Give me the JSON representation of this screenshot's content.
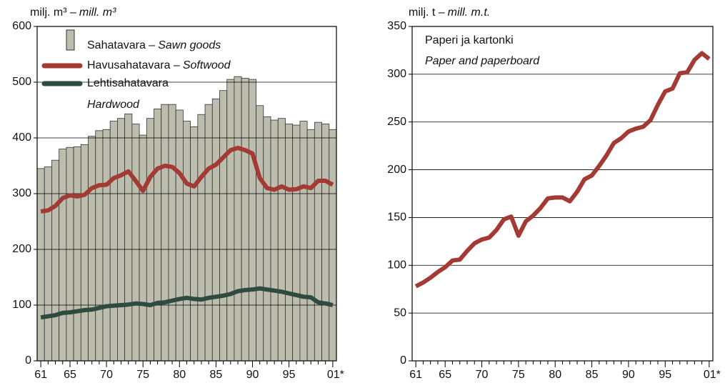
{
  "chart_data": [
    {
      "type": "bar",
      "unit_label": "milj. m³ –",
      "unit_label_en": "mill. m³",
      "categories": [
        "61",
        null,
        null,
        null,
        "65",
        null,
        null,
        null,
        null,
        "70",
        null,
        null,
        null,
        null,
        "75",
        null,
        null,
        null,
        null,
        "80",
        null,
        null,
        null,
        null,
        "85",
        null,
        null,
        null,
        null,
        "90",
        null,
        null,
        null,
        null,
        "95",
        null,
        null,
        null,
        null,
        null,
        "01*"
      ],
      "ylim": [
        0,
        600
      ],
      "yticks": [
        0,
        100,
        200,
        300,
        400,
        500,
        600
      ],
      "grid": true,
      "series": [
        {
          "name": "Sahatavara –",
          "name_en": "Sawn goods",
          "type": "bar",
          "color": "#bdbdae",
          "values": [
            345,
            348,
            360,
            380,
            383,
            384,
            388,
            403,
            413,
            415,
            430,
            435,
            443,
            425,
            405,
            435,
            452,
            460,
            460,
            450,
            430,
            420,
            442,
            460,
            470,
            485,
            505,
            510,
            507,
            505,
            458,
            438,
            432,
            435,
            425,
            423,
            430,
            415,
            428,
            425,
            415
          ]
        },
        {
          "name": "Havusahatavara –",
          "name_en": "Softwood",
          "type": "line",
          "color": "#a33a33",
          "values": [
            268,
            270,
            278,
            292,
            297,
            295,
            298,
            310,
            315,
            316,
            328,
            333,
            340,
            323,
            305,
            330,
            345,
            350,
            348,
            337,
            318,
            313,
            330,
            345,
            352,
            365,
            378,
            382,
            378,
            372,
            328,
            310,
            307,
            313,
            307,
            308,
            313,
            310,
            323,
            323,
            316
          ]
        },
        {
          "name": "Lehtisahatavara",
          "name_en": "Hardwood",
          "type": "line",
          "color": "#2f4a3f",
          "values": [
            78,
            80,
            82,
            86,
            87,
            89,
            91,
            92,
            95,
            98,
            99,
            100,
            101,
            103,
            102,
            100,
            104,
            105,
            108,
            111,
            113,
            111,
            110,
            113,
            115,
            117,
            120,
            125,
            127,
            128,
            130,
            128,
            126,
            124,
            121,
            118,
            115,
            114,
            105,
            103,
            100
          ]
        }
      ]
    },
    {
      "type": "line",
      "unit_label": "milj. t –",
      "unit_label_en": "mill. m.t.",
      "categories": [
        "61",
        null,
        null,
        null,
        "65",
        null,
        null,
        null,
        null,
        "70",
        null,
        null,
        null,
        null,
        "75",
        null,
        null,
        null,
        null,
        "80",
        null,
        null,
        null,
        null,
        "85",
        null,
        null,
        null,
        null,
        "90",
        null,
        null,
        null,
        null,
        "95",
        null,
        null,
        null,
        null,
        null,
        "01*"
      ],
      "ylim": [
        0,
        350
      ],
      "yticks": [
        0,
        50,
        100,
        150,
        200,
        250,
        300,
        350
      ],
      "grid": true,
      "series": [
        {
          "name": "Paperi ja kartonki",
          "name_en": "Paper and paperboard",
          "color": "#a33a33",
          "values": [
            78,
            82,
            87,
            93,
            98,
            105,
            106,
            115,
            123,
            127,
            129,
            137,
            148,
            151,
            131,
            146,
            152,
            160,
            170,
            171,
            171,
            167,
            177,
            190,
            194,
            204,
            215,
            228,
            233,
            240,
            243,
            245,
            252,
            268,
            282,
            285,
            301,
            302,
            315,
            322,
            316
          ]
        }
      ]
    }
  ]
}
